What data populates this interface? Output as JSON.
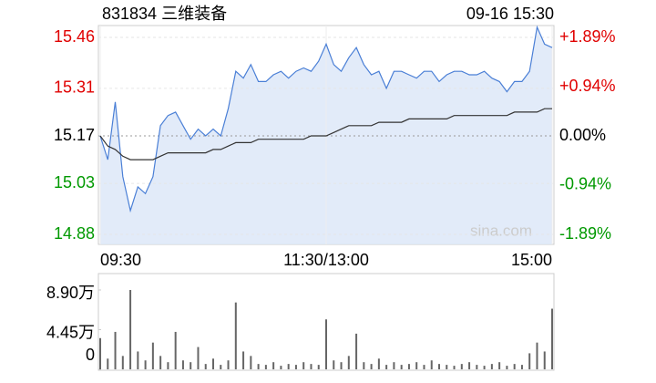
{
  "chart_data": [
    {
      "type": "line",
      "title": "831834 三维装备",
      "timestamp": "09-16 15:30",
      "watermark": "sina.com",
      "x": [
        0,
        4,
        8,
        12,
        16,
        20,
        24,
        28,
        32,
        36,
        40,
        44,
        48,
        52,
        56,
        60,
        64,
        68,
        72,
        76,
        80,
        84,
        88,
        92,
        96,
        100,
        104,
        108,
        112,
        116,
        120,
        124,
        128,
        132,
        136,
        140,
        144,
        148,
        152,
        156,
        160,
        164,
        168,
        172,
        176,
        180,
        184,
        188,
        192,
        196,
        200,
        204,
        208,
        212,
        216,
        220,
        224,
        228,
        232,
        236,
        240
      ],
      "xlim": [
        0,
        240
      ],
      "xticks": [
        {
          "value": 0,
          "label": "09:30"
        },
        {
          "value": 120,
          "label": "11:30/13:00"
        },
        {
          "value": 240,
          "label": "15:00"
        }
      ],
      "ylim": [
        14.88,
        15.46
      ],
      "yticks": [
        15.46,
        15.31,
        15.17,
        15.03,
        14.88
      ],
      "y2lim": [
        -1.89,
        1.89
      ],
      "y2ticks": [
        {
          "value": 1.89,
          "label": "+1.89%"
        },
        {
          "value": 0.94,
          "label": "+0.94%"
        },
        {
          "value": 0,
          "label": "0.00%"
        },
        {
          "value": -0.94,
          "label": "-0.94%"
        },
        {
          "value": -1.89,
          "label": "-1.89%"
        }
      ],
      "grid": true,
      "up_color": "#e00000",
      "down_color": "#009900",
      "flat_color": "#000000",
      "series": [
        {
          "color": "#4a7fd6",
          "fill": "#dde8f8",
          "values": [
            15.17,
            15.1,
            15.27,
            15.05,
            14.95,
            15.02,
            15.0,
            15.05,
            15.2,
            15.23,
            15.24,
            15.2,
            15.16,
            15.19,
            15.17,
            15.19,
            15.17,
            15.25,
            15.36,
            15.34,
            15.38,
            15.33,
            15.33,
            15.35,
            15.36,
            15.34,
            15.36,
            15.37,
            15.36,
            15.39,
            15.44,
            15.38,
            15.36,
            15.4,
            15.43,
            15.38,
            15.35,
            15.36,
            15.31,
            15.36,
            15.36,
            15.35,
            15.34,
            15.36,
            15.36,
            15.33,
            15.35,
            15.36,
            15.36,
            15.35,
            15.35,
            15.36,
            15.34,
            15.33,
            15.3,
            15.33,
            15.33,
            15.36,
            15.49,
            15.44,
            15.43
          ]
        },
        {
          "color": "#333333",
          "values": [
            15.17,
            15.14,
            15.13,
            15.11,
            15.1,
            15.1,
            15.1,
            15.1,
            15.11,
            15.12,
            15.12,
            15.12,
            15.12,
            15.12,
            15.12,
            15.13,
            15.13,
            15.14,
            15.15,
            15.15,
            15.15,
            15.16,
            15.16,
            15.16,
            15.16,
            15.16,
            15.16,
            15.16,
            15.17,
            15.17,
            15.17,
            15.18,
            15.19,
            15.2,
            15.2,
            15.2,
            15.2,
            15.21,
            15.21,
            15.21,
            15.21,
            15.22,
            15.22,
            15.22,
            15.22,
            15.22,
            15.22,
            15.23,
            15.23,
            15.23,
            15.23,
            15.23,
            15.23,
            15.23,
            15.23,
            15.24,
            15.24,
            15.24,
            15.24,
            15.25,
            15.25
          ]
        }
      ]
    },
    {
      "type": "bar",
      "x": [
        0,
        4,
        8,
        12,
        16,
        20,
        24,
        28,
        32,
        36,
        40,
        44,
        48,
        52,
        56,
        60,
        64,
        68,
        72,
        76,
        80,
        84,
        88,
        92,
        96,
        100,
        104,
        108,
        112,
        116,
        120,
        124,
        128,
        132,
        136,
        140,
        144,
        148,
        152,
        156,
        160,
        164,
        168,
        172,
        176,
        180,
        184,
        188,
        192,
        196,
        200,
        204,
        208,
        212,
        216,
        220,
        224,
        228,
        232,
        236,
        240
      ],
      "xlim": [
        0,
        240
      ],
      "ylim": [
        0,
        8.9
      ],
      "yticks": [
        {
          "value": 8.9,
          "label": "8.90万"
        },
        {
          "value": 4.45,
          "label": "4.45万"
        },
        0
      ],
      "color": "#666666",
      "values": [
        3.5,
        1.2,
        4.2,
        1.5,
        8.9,
        2.0,
        1.0,
        3.0,
        1.5,
        0.8,
        4.2,
        1.0,
        0.8,
        2.5,
        0.6,
        1.2,
        0.5,
        1.0,
        7.5,
        2.0,
        1.5,
        0.6,
        0.5,
        0.8,
        0.4,
        0.6,
        0.5,
        0.8,
        0.6,
        0.5,
        5.6,
        1.0,
        0.8,
        1.5,
        4.0,
        0.8,
        0.6,
        1.2,
        0.5,
        0.8,
        0.5,
        0.6,
        0.8,
        0.5,
        1.0,
        0.6,
        0.5,
        0.4,
        0.6,
        0.8,
        0.5,
        0.4,
        0.6,
        0.8,
        0.4,
        0.6,
        0.5,
        1.8,
        3.0,
        2.0,
        6.8
      ]
    }
  ]
}
